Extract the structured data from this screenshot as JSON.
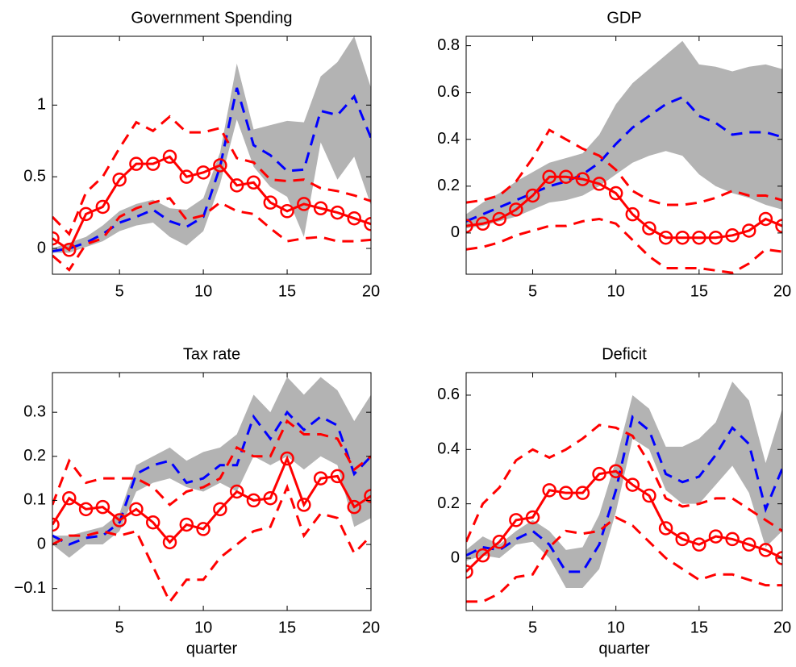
{
  "chart_data": [
    {
      "type": "line",
      "title": "Government Spending",
      "x": [
        1,
        2,
        3,
        4,
        5,
        6,
        7,
        8,
        9,
        10,
        11,
        12,
        13,
        14,
        15,
        16,
        17,
        18,
        19,
        20
      ],
      "xlim": [
        1,
        20
      ],
      "xticks": [
        5,
        10,
        15,
        20
      ],
      "ylim": [
        -0.18,
        1.48
      ],
      "yticks": [
        0,
        0.5,
        1
      ],
      "band": {
        "color": "#b3b3b3",
        "lower": [
          -0.03,
          -0.03,
          0.01,
          0.05,
          0.12,
          0.16,
          0.18,
          0.08,
          0.02,
          0.12,
          0.45,
          0.9,
          0.57,
          0.43,
          0.36,
          0.08,
          0.74,
          0.48,
          0.64,
          0.3
        ],
        "upper": [
          0.0,
          0.04,
          0.08,
          0.16,
          0.26,
          0.31,
          0.34,
          0.28,
          0.27,
          0.35,
          0.67,
          1.29,
          0.83,
          0.86,
          0.89,
          0.88,
          1.2,
          1.3,
          1.48,
          1.12
        ]
      },
      "series": [
        {
          "color": "#0000ff",
          "dash": true,
          "values": [
            -0.02,
            0.0,
            0.04,
            0.1,
            0.18,
            0.22,
            0.27,
            0.19,
            0.15,
            0.22,
            0.57,
            1.12,
            0.72,
            0.65,
            0.54,
            0.55,
            0.96,
            0.93,
            1.06,
            0.77
          ]
        },
        {
          "color": "#ff0000",
          "dash": true,
          "values": [
            0.22,
            0.1,
            0.39,
            0.5,
            0.7,
            0.88,
            0.82,
            0.92,
            0.81,
            0.81,
            0.84,
            0.63,
            0.6,
            0.48,
            0.47,
            0.48,
            0.42,
            0.4,
            0.37,
            0.33
          ]
        },
        {
          "color": "#ff0000",
          "dash": true,
          "values": [
            -0.05,
            -0.15,
            0.03,
            0.07,
            0.22,
            0.28,
            0.32,
            0.35,
            0.2,
            0.23,
            0.32,
            0.26,
            0.24,
            0.14,
            0.05,
            0.07,
            0.08,
            0.05,
            0.05,
            0.06
          ]
        },
        {
          "color": "#ff0000",
          "marker": "circle",
          "values": [
            0.07,
            -0.01,
            0.24,
            0.29,
            0.48,
            0.59,
            0.59,
            0.64,
            0.5,
            0.53,
            0.58,
            0.44,
            0.46,
            0.32,
            0.26,
            0.31,
            0.28,
            0.25,
            0.21,
            0.17
          ]
        }
      ]
    },
    {
      "type": "line",
      "title": "GDP",
      "x": [
        1,
        2,
        3,
        4,
        5,
        6,
        7,
        8,
        9,
        10,
        11,
        12,
        13,
        14,
        15,
        16,
        17,
        18,
        19,
        20
      ],
      "xlim": [
        1,
        20
      ],
      "xticks": [
        5,
        10,
        15,
        20
      ],
      "ylim": [
        -0.176,
        0.84
      ],
      "yticks": [
        0,
        0.2,
        0.4,
        0.6,
        0.8
      ],
      "band": {
        "color": "#b3b3b3",
        "lower": [
          0.02,
          0.03,
          0.05,
          0.07,
          0.1,
          0.13,
          0.14,
          0.16,
          0.2,
          0.25,
          0.3,
          0.33,
          0.35,
          0.33,
          0.25,
          0.2,
          0.17,
          0.15,
          0.12,
          0.1
        ],
        "upper": [
          0.08,
          0.13,
          0.17,
          0.22,
          0.26,
          0.3,
          0.32,
          0.34,
          0.42,
          0.55,
          0.64,
          0.7,
          0.76,
          0.82,
          0.72,
          0.71,
          0.69,
          0.71,
          0.72,
          0.7
        ]
      },
      "series": [
        {
          "color": "#0000ff",
          "dash": true,
          "values": [
            0.05,
            0.08,
            0.11,
            0.14,
            0.17,
            0.2,
            0.22,
            0.25,
            0.3,
            0.38,
            0.45,
            0.5,
            0.55,
            0.58,
            0.5,
            0.47,
            0.42,
            0.43,
            0.43,
            0.41
          ]
        },
        {
          "color": "#ff0000",
          "dash": true,
          "values": [
            0.13,
            0.14,
            0.16,
            0.22,
            0.32,
            0.44,
            0.4,
            0.36,
            0.33,
            0.27,
            0.18,
            0.14,
            0.12,
            0.12,
            0.13,
            0.15,
            0.18,
            0.16,
            0.16,
            0.14
          ]
        },
        {
          "color": "#ff0000",
          "dash": true,
          "values": [
            -0.07,
            -0.06,
            -0.04,
            -0.01,
            0.01,
            0.03,
            0.03,
            0.05,
            0.06,
            0.04,
            -0.03,
            -0.1,
            -0.15,
            -0.15,
            -0.15,
            -0.16,
            -0.17,
            -0.13,
            -0.07,
            -0.08
          ]
        },
        {
          "color": "#ff0000",
          "marker": "circle",
          "values": [
            0.03,
            0.04,
            0.06,
            0.1,
            0.16,
            0.24,
            0.24,
            0.23,
            0.21,
            0.17,
            0.08,
            0.02,
            -0.02,
            -0.02,
            -0.02,
            -0.02,
            -0.01,
            0.01,
            0.06,
            0.03
          ]
        }
      ]
    },
    {
      "type": "line",
      "title": "Tax rate",
      "xlabel": "quarter",
      "x": [
        1,
        2,
        3,
        4,
        5,
        6,
        7,
        8,
        9,
        10,
        11,
        12,
        13,
        14,
        15,
        16,
        17,
        18,
        19,
        20
      ],
      "xlim": [
        1,
        20
      ],
      "xticks": [
        5,
        10,
        15,
        20
      ],
      "ylim": [
        -0.15,
        0.39
      ],
      "yticks": [
        {
          "value": -0.1,
          "label": "−0.1"
        },
        0,
        0.1,
        0.2,
        0.3
      ],
      "band": {
        "color": "#b3b3b3",
        "lower": [
          0.0,
          -0.03,
          0.0,
          0.0,
          0.03,
          0.12,
          0.14,
          0.15,
          0.13,
          0.12,
          0.14,
          0.12,
          0.2,
          0.18,
          0.2,
          0.17,
          0.2,
          0.18,
          0.04,
          0.06
        ],
        "upper": [
          0.02,
          0.02,
          0.03,
          0.04,
          0.07,
          0.18,
          0.2,
          0.22,
          0.19,
          0.21,
          0.22,
          0.25,
          0.34,
          0.3,
          0.38,
          0.34,
          0.38,
          0.35,
          0.28,
          0.34
        ]
      },
      "series": [
        {
          "color": "#0000ff",
          "dash": true,
          "values": [
            0.02,
            0.0,
            0.015,
            0.02,
            0.05,
            0.16,
            0.18,
            0.19,
            0.14,
            0.15,
            0.18,
            0.18,
            0.29,
            0.24,
            0.3,
            0.26,
            0.29,
            0.27,
            0.16,
            0.2
          ]
        },
        {
          "color": "#ff0000",
          "dash": true,
          "values": [
            0.09,
            0.19,
            0.14,
            0.15,
            0.15,
            0.15,
            0.13,
            0.09,
            0.12,
            0.13,
            0.15,
            0.22,
            0.2,
            0.2,
            0.28,
            0.25,
            0.25,
            0.24,
            0.17,
            0.2
          ]
        },
        {
          "color": "#ff0000",
          "dash": true,
          "values": [
            0.0,
            0.02,
            0.02,
            0.03,
            0.02,
            0.03,
            -0.05,
            -0.13,
            -0.08,
            -0.08,
            -0.03,
            0.0,
            0.03,
            0.04,
            0.13,
            0.02,
            0.07,
            0.06,
            -0.02,
            0.02
          ]
        },
        {
          "color": "#ff0000",
          "marker": "circle",
          "values": [
            0.045,
            0.105,
            0.08,
            0.085,
            0.055,
            0.08,
            0.05,
            0.005,
            0.045,
            0.035,
            0.08,
            0.12,
            0.1,
            0.105,
            0.195,
            0.09,
            0.15,
            0.155,
            0.085,
            0.11
          ]
        }
      ]
    },
    {
      "type": "line",
      "title": "Deficit",
      "xlabel": "quarter",
      "x": [
        1,
        2,
        3,
        4,
        5,
        6,
        7,
        8,
        9,
        10,
        11,
        12,
        13,
        14,
        15,
        16,
        17,
        18,
        19,
        20
      ],
      "xlim": [
        1,
        20
      ],
      "xticks": [
        5,
        10,
        15,
        20
      ],
      "ylim": [
        -0.193,
        0.683
      ],
      "yticks": [
        0,
        0.2,
        0.4,
        0.6
      ],
      "band": {
        "color": "#b3b3b3",
        "lower": [
          -0.01,
          0.01,
          0.0,
          0.05,
          0.06,
          0.0,
          -0.11,
          -0.11,
          -0.04,
          0.17,
          0.44,
          0.4,
          0.25,
          0.2,
          0.2,
          0.27,
          0.34,
          0.24,
          0.04,
          0.1
        ],
        "upper": [
          0.03,
          0.08,
          0.05,
          0.1,
          0.14,
          0.1,
          0.03,
          0.04,
          0.16,
          0.36,
          0.6,
          0.55,
          0.41,
          0.41,
          0.44,
          0.5,
          0.65,
          0.58,
          0.35,
          0.55
        ]
      },
      "series": [
        {
          "color": "#0000ff",
          "dash": true,
          "values": [
            0.01,
            0.04,
            0.03,
            0.07,
            0.1,
            0.05,
            -0.05,
            -0.05,
            0.05,
            0.25,
            0.52,
            0.47,
            0.31,
            0.28,
            0.3,
            0.38,
            0.48,
            0.42,
            0.18,
            0.33
          ]
        },
        {
          "color": "#ff0000",
          "dash": true,
          "values": [
            0.06,
            0.2,
            0.26,
            0.36,
            0.4,
            0.37,
            0.4,
            0.44,
            0.49,
            0.48,
            0.45,
            0.35,
            0.22,
            0.19,
            0.2,
            0.22,
            0.22,
            0.18,
            0.14,
            0.1
          ]
        },
        {
          "color": "#ff0000",
          "dash": true,
          "values": [
            -0.16,
            -0.16,
            -0.13,
            -0.07,
            -0.06,
            0.04,
            0.1,
            0.09,
            0.1,
            0.15,
            0.12,
            0.06,
            0.0,
            -0.04,
            -0.08,
            -0.06,
            -0.06,
            -0.08,
            -0.1,
            -0.1
          ]
        },
        {
          "color": "#ff0000",
          "marker": "circle",
          "values": [
            -0.05,
            0.01,
            0.06,
            0.14,
            0.15,
            0.25,
            0.24,
            0.24,
            0.31,
            0.32,
            0.27,
            0.23,
            0.11,
            0.07,
            0.05,
            0.08,
            0.07,
            0.05,
            0.03,
            0.0
          ]
        }
      ]
    }
  ]
}
